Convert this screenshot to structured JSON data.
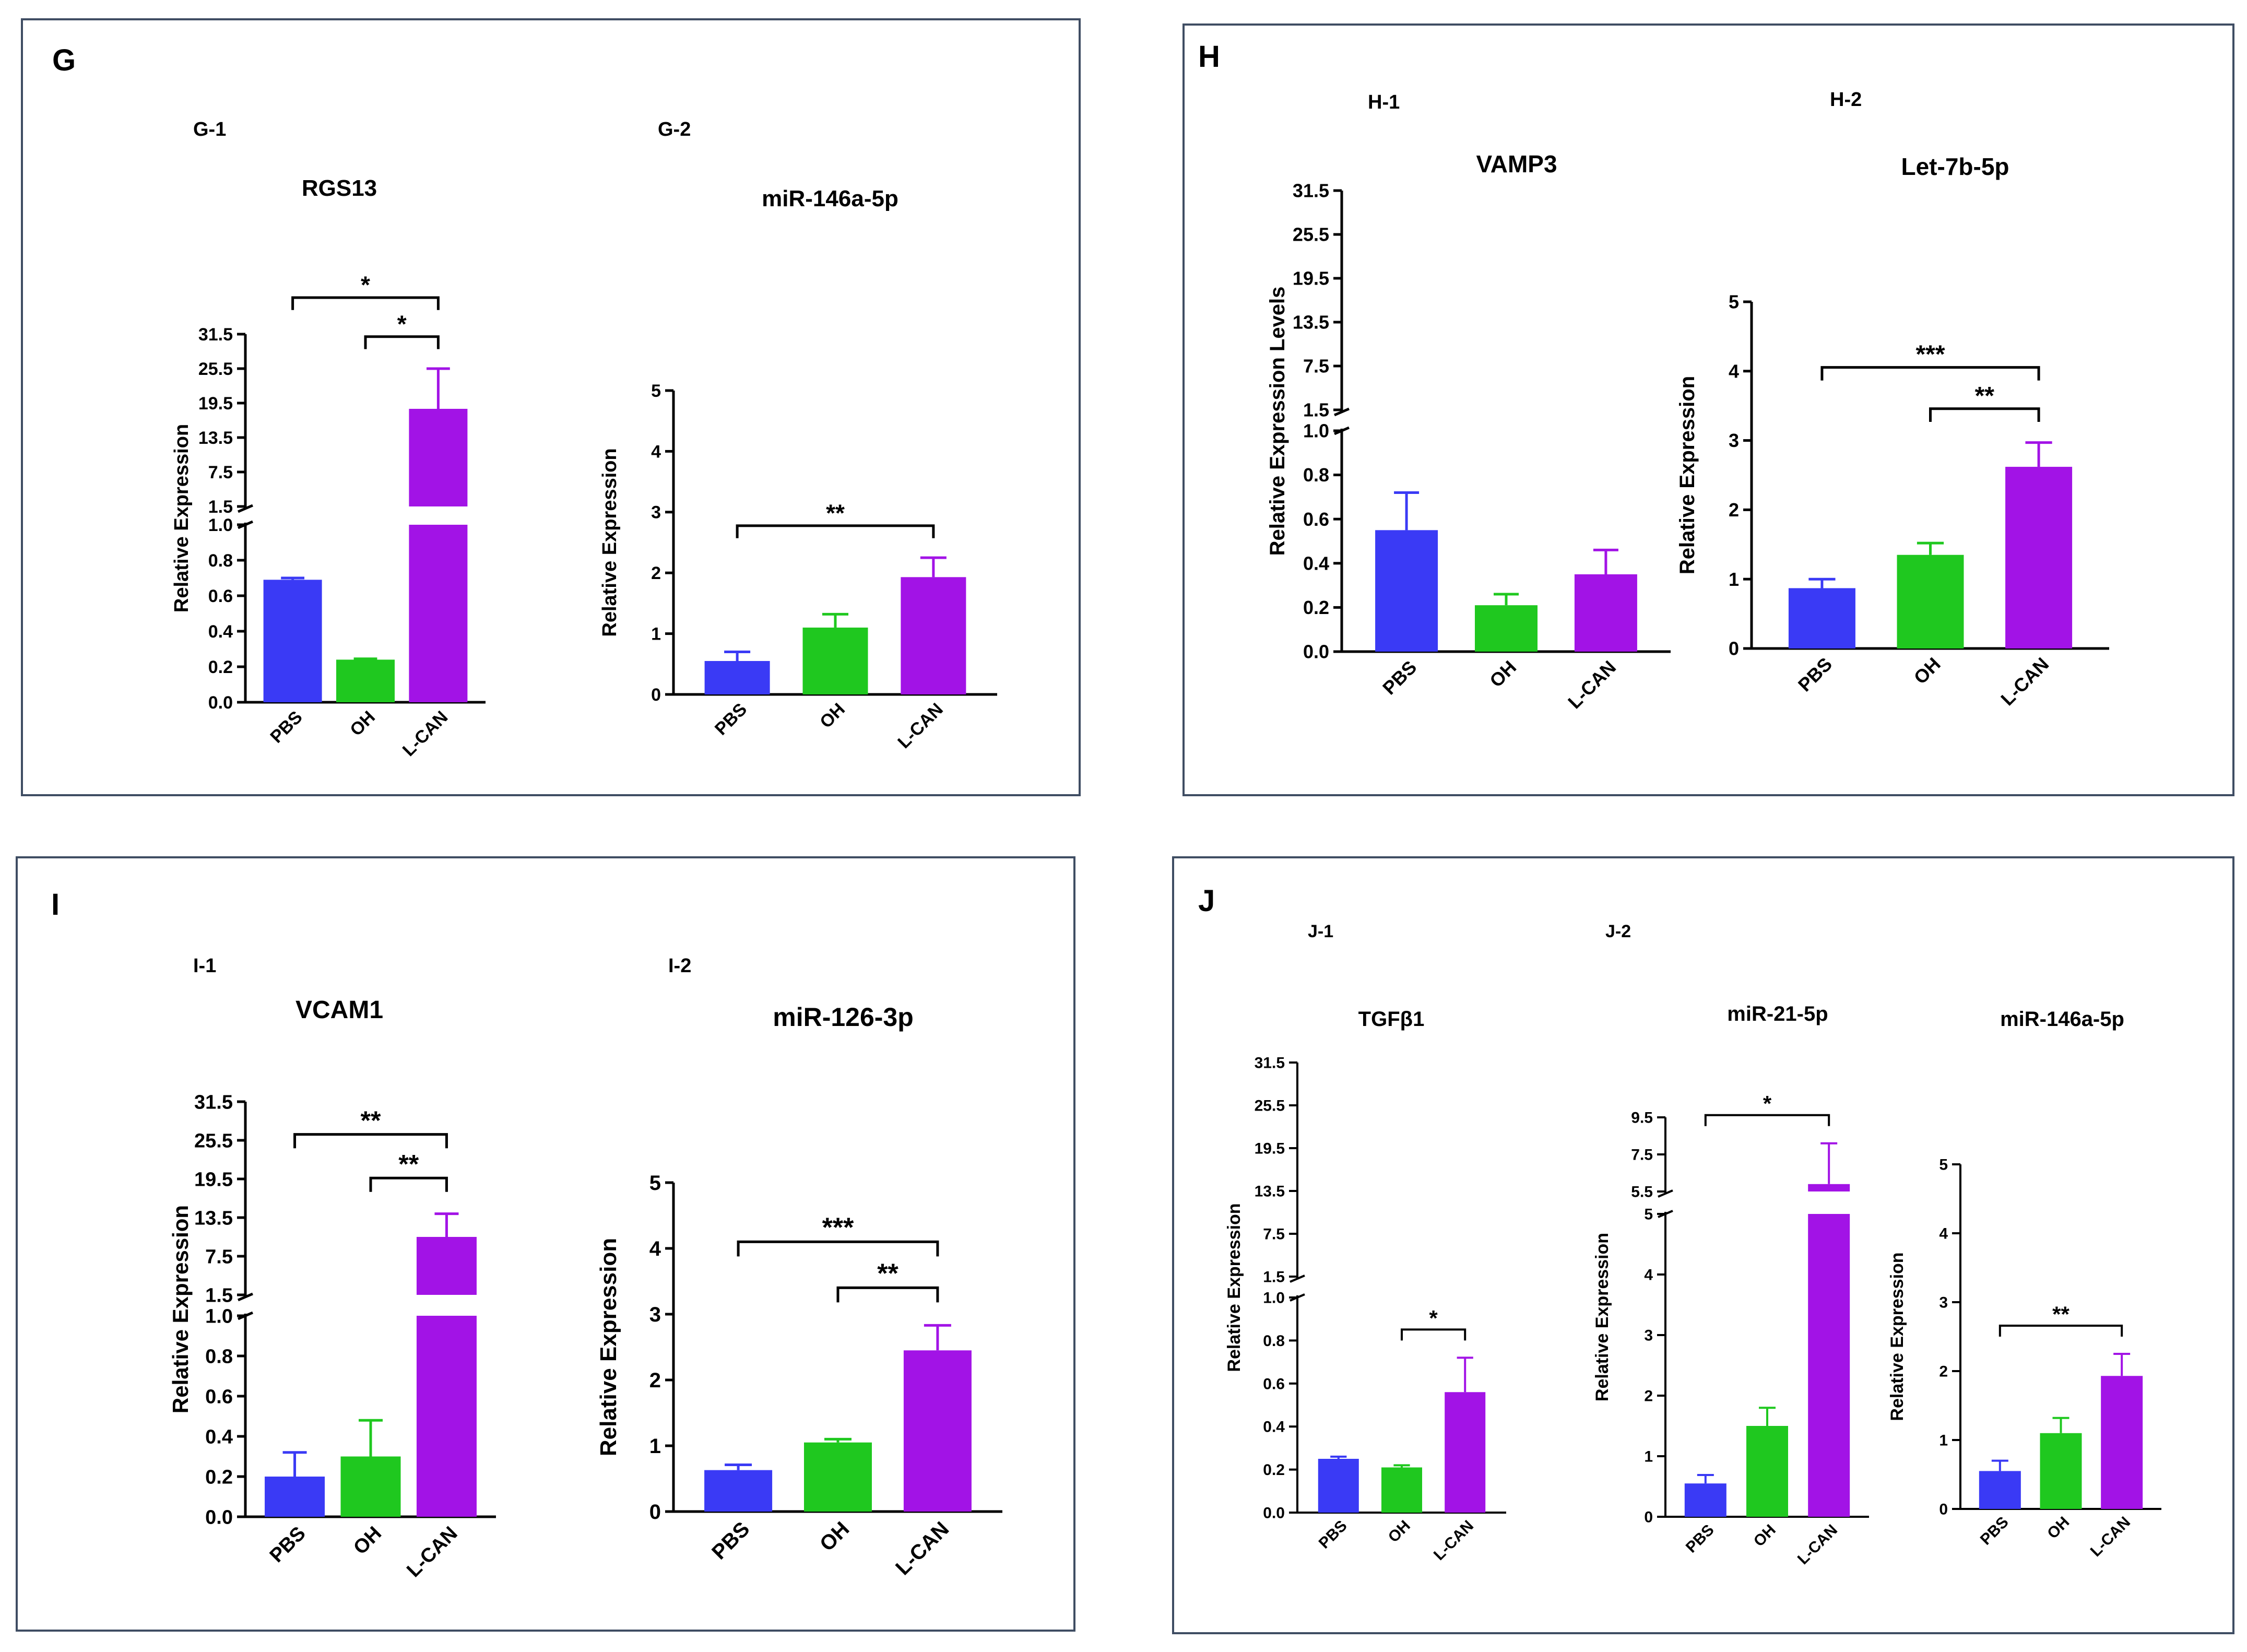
{
  "panels": [
    {
      "letter": "G",
      "sublabels": [
        "G-1",
        "G-2"
      ]
    },
    {
      "letter": "H",
      "sublabels": [
        "H-1",
        "H-2"
      ]
    },
    {
      "letter": "I",
      "sublabels": [
        "I-1",
        "I-2"
      ]
    },
    {
      "letter": "J",
      "sublabels": [
        "J-1",
        "J-2"
      ]
    }
  ],
  "colors": {
    "PBS": "#3a3af5",
    "OH": "#1fc81f",
    "L-CAN": "#a213e6",
    "axis": "#000000",
    "border": "#3f4d63"
  },
  "chart_data": [
    {
      "id": "G-1",
      "type": "bar",
      "title": "RGS13",
      "ylabel": "Relative Expression",
      "categories": [
        "PBS",
        "OH",
        "L-CAN"
      ],
      "values": [
        0.69,
        0.24,
        18.5
      ],
      "errors": [
        0.01,
        0.005,
        7.0
      ],
      "broken_axis": true,
      "ylim_lower": [
        0,
        1.0
      ],
      "ylim_upper": [
        1.5,
        31.5
      ],
      "yticks_lower": [
        "0.0",
        "0.2",
        "0.4",
        "0.6",
        "0.8",
        "1.0"
      ],
      "yticks_upper": [
        "1.5",
        "7.5",
        "13.5",
        "19.5",
        "25.5",
        "31.5"
      ],
      "significance": [
        {
          "from": 0,
          "to": 2,
          "label": "*"
        },
        {
          "from": 1,
          "to": 2,
          "label": "*"
        }
      ]
    },
    {
      "id": "G-2",
      "type": "bar",
      "title": "miR-146a-5p",
      "ylabel": "Relative Expression",
      "categories": [
        "PBS",
        "OH",
        "L-CAN"
      ],
      "values": [
        0.55,
        1.1,
        1.93
      ],
      "errors": [
        0.15,
        0.22,
        0.32
      ],
      "ylim": [
        0,
        5
      ],
      "yticks": [
        "0",
        "1",
        "2",
        "3",
        "4",
        "5"
      ],
      "significance": [
        {
          "from": 0,
          "to": 2,
          "label": "**"
        }
      ]
    },
    {
      "id": "H-1",
      "type": "bar",
      "title": "VAMP3",
      "ylabel": "Relative Expression Levels",
      "categories": [
        "PBS",
        "OH",
        "L-CAN"
      ],
      "values": [
        0.55,
        0.21,
        0.35
      ],
      "errors": [
        0.17,
        0.05,
        0.11
      ],
      "broken_axis": true,
      "ylim_lower": [
        0,
        1.0
      ],
      "ylim_upper": [
        1.5,
        31.5
      ],
      "yticks_lower": [
        "0.0",
        "0.2",
        "0.4",
        "0.6",
        "0.8",
        "1.0"
      ],
      "yticks_upper": [
        "1.5",
        "7.5",
        "13.5",
        "19.5",
        "25.5",
        "31.5"
      ],
      "significance": []
    },
    {
      "id": "H-2",
      "type": "bar",
      "title": "Let-7b-5p",
      "ylabel": "Relative Expression",
      "categories": [
        "PBS",
        "OH",
        "L-CAN"
      ],
      "values": [
        0.87,
        1.35,
        2.62
      ],
      "errors": [
        0.13,
        0.17,
        0.35
      ],
      "ylim": [
        0,
        5
      ],
      "yticks": [
        "0",
        "1",
        "2",
        "3",
        "4",
        "5"
      ],
      "significance": [
        {
          "from": 0,
          "to": 2,
          "label": "***"
        },
        {
          "from": 1,
          "to": 2,
          "label": "**"
        }
      ]
    },
    {
      "id": "I-1",
      "type": "bar",
      "title": "VCAM1",
      "ylabel": "Relative Expression",
      "categories": [
        "PBS",
        "OH",
        "L-CAN"
      ],
      "values": [
        0.2,
        0.3,
        10.5
      ],
      "errors": [
        0.12,
        0.18,
        3.6
      ],
      "broken_axis": true,
      "ylim_lower": [
        0,
        1.0
      ],
      "ylim_upper": [
        1.5,
        31.5
      ],
      "yticks_lower": [
        "0.0",
        "0.2",
        "0.4",
        "0.6",
        "0.8",
        "1.0"
      ],
      "yticks_upper": [
        "1.5",
        "7.5",
        "13.5",
        "19.5",
        "25.5",
        "31.5"
      ],
      "significance": [
        {
          "from": 0,
          "to": 2,
          "label": "**"
        },
        {
          "from": 1,
          "to": 2,
          "label": "**"
        }
      ]
    },
    {
      "id": "I-2",
      "type": "bar",
      "title": "miR-126-3p",
      "ylabel": "Relative Expression",
      "categories": [
        "PBS",
        "OH",
        "L-CAN"
      ],
      "values": [
        0.63,
        1.05,
        2.45
      ],
      "errors": [
        0.08,
        0.05,
        0.38
      ],
      "ylim": [
        0,
        5
      ],
      "yticks": [
        "0",
        "1",
        "2",
        "3",
        "4",
        "5"
      ],
      "significance": [
        {
          "from": 0,
          "to": 2,
          "label": "***"
        },
        {
          "from": 1,
          "to": 2,
          "label": "**"
        }
      ]
    },
    {
      "id": "J-1",
      "type": "bar",
      "title": "TGFβ1",
      "ylabel": "Relative Expression",
      "categories": [
        "PBS",
        "OH",
        "L-CAN"
      ],
      "values": [
        0.25,
        0.21,
        0.56
      ],
      "errors": [
        0.01,
        0.01,
        0.16
      ],
      "broken_axis": true,
      "ylim_lower": [
        0,
        1.0
      ],
      "ylim_upper": [
        1.5,
        31.5
      ],
      "yticks_lower": [
        "0.0",
        "0.2",
        "0.4",
        "0.6",
        "0.8",
        "1.0"
      ],
      "yticks_upper": [
        "1.5",
        "7.5",
        "13.5",
        "19.5",
        "25.5",
        "31.5"
      ],
      "significance": [
        {
          "from": 1,
          "to": 2,
          "label": "*"
        }
      ]
    },
    {
      "id": "J-2a",
      "type": "bar",
      "title": "miR-21-5p",
      "ylabel": "Relative Expression",
      "categories": [
        "PBS",
        "OH",
        "L-CAN"
      ],
      "values": [
        0.55,
        1.5,
        5.9
      ],
      "errors": [
        0.14,
        0.3,
        2.2
      ],
      "broken_axis": true,
      "ylim_lower": [
        0,
        5
      ],
      "ylim_upper": [
        5.5,
        9.5
      ],
      "yticks_lower": [
        "0",
        "1",
        "2",
        "3",
        "4",
        "5"
      ],
      "yticks_upper": [
        "5.5",
        "7.5",
        "9.5"
      ],
      "significance": [
        {
          "from": 0,
          "to": 2,
          "label": "*"
        }
      ]
    },
    {
      "id": "J-2b",
      "type": "bar",
      "title": "miR-146a-5p",
      "ylabel": "Relative Expression",
      "categories": [
        "PBS",
        "OH",
        "L-CAN"
      ],
      "values": [
        0.55,
        1.1,
        1.93
      ],
      "errors": [
        0.15,
        0.22,
        0.32
      ],
      "ylim": [
        0,
        5
      ],
      "yticks": [
        "0",
        "1",
        "2",
        "3",
        "4",
        "5"
      ],
      "significance": [
        {
          "from": 0,
          "to": 2,
          "label": "**"
        }
      ]
    }
  ]
}
